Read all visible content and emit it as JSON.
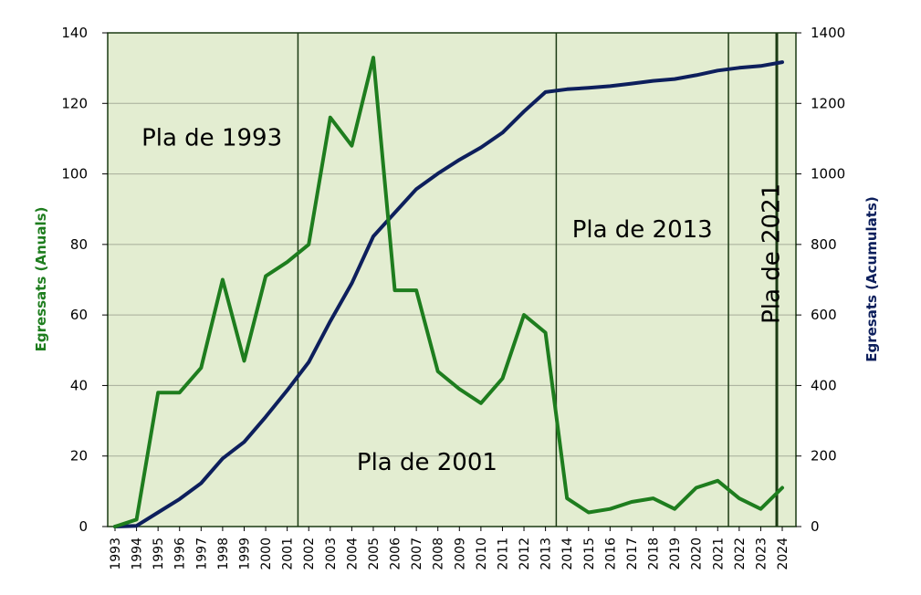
{
  "chart_data": {
    "type": "line",
    "categories": [
      "1993",
      "1994",
      "1995",
      "1996",
      "1997",
      "1998",
      "1999",
      "2000",
      "2001",
      "2002",
      "2003",
      "2004",
      "2005",
      "2006",
      "2007",
      "2008",
      "2009",
      "2010",
      "2011",
      "2012",
      "2013",
      "2014",
      "2015",
      "2016",
      "2017",
      "2018",
      "2019",
      "2020",
      "2021",
      "2022",
      "2023",
      "2024"
    ],
    "series": [
      {
        "name": "Egressats (Anuals)",
        "axis": "left",
        "color": "#1e7d1e",
        "values": [
          0,
          2,
          38,
          38,
          45,
          70,
          47,
          71,
          75,
          80,
          116,
          108,
          133,
          67,
          67,
          44,
          39,
          35,
          42,
          60,
          55,
          8,
          4,
          5,
          7,
          8,
          5,
          11,
          13,
          8,
          5,
          11
        ]
      },
      {
        "name": "Egresats (Acumulats)",
        "axis": "right",
        "color": "#0d1f5c",
        "values": [
          0,
          2,
          40,
          78,
          123,
          193,
          240,
          311,
          386,
          466,
          582,
          690,
          823,
          890,
          957,
          1001,
          1040,
          1075,
          1117,
          1177,
          1232,
          1240,
          1244,
          1249,
          1256,
          1264,
          1269,
          1280,
          1293,
          1301,
          1306,
          1317
        ]
      }
    ],
    "ylabel_left": "Egressats (Anuals)",
    "ylabel_right": "Egresats (Acumulats)",
    "ylim_left": [
      0,
      140
    ],
    "ylim_right": [
      0,
      1400
    ],
    "yticks_left": [
      "0",
      "20",
      "40",
      "60",
      "80",
      "100",
      "120",
      "140"
    ],
    "yticks_right": [
      "0",
      "200",
      "400",
      "600",
      "800",
      "1000",
      "1200",
      "1400"
    ],
    "grid": true,
    "background_color": "#e3edd1",
    "plan_boundaries": [
      2001.5,
      2013.5,
      2021.5,
      2024
    ],
    "plan_labels": [
      {
        "text": "Pla de 1993",
        "near": "1997.5",
        "level": 108
      },
      {
        "text": "Pla de 2001",
        "near": "2007.5",
        "level": 16
      },
      {
        "text": "Pla de 2013",
        "near": "2017.5",
        "level": 82
      },
      {
        "text": "Pla de 2021",
        "near": "2023",
        "level": 80,
        "vertical": true
      }
    ]
  }
}
